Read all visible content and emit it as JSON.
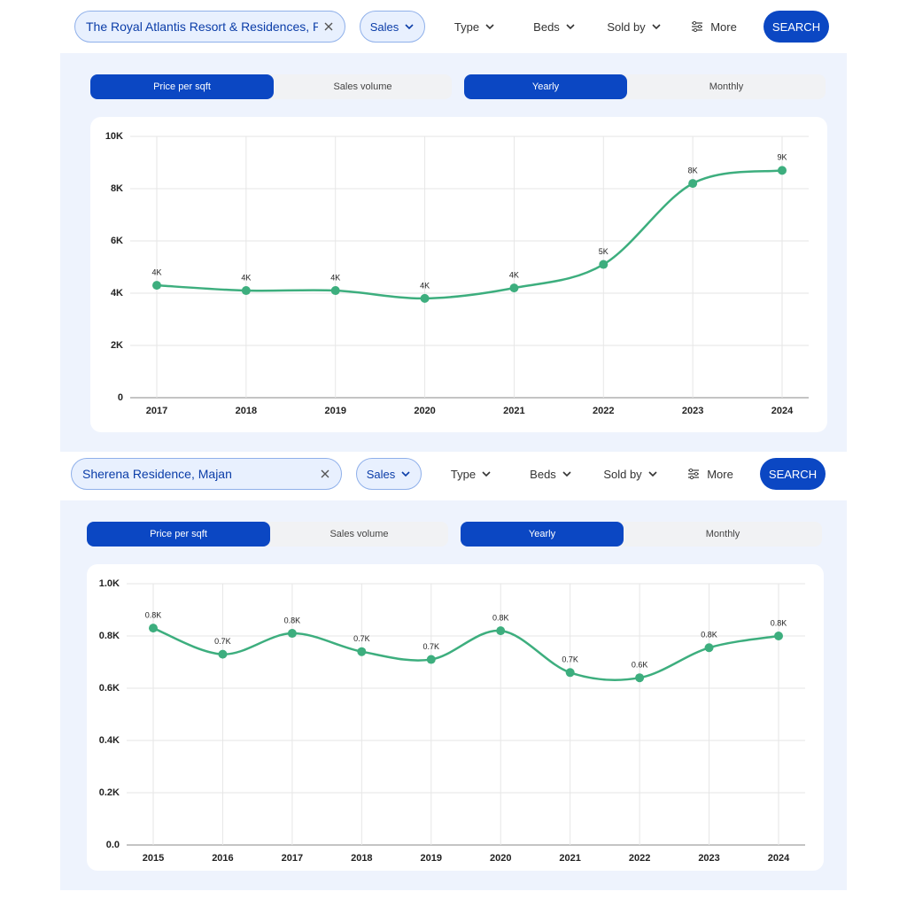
{
  "panels": [
    {
      "search_query": "The Royal Atlantis Resort & Residences, Palm ...",
      "filters": [
        "Sales",
        "Type",
        "Beds",
        "Sold by",
        "More"
      ],
      "search_button": "SEARCH",
      "metric_tabs": [
        "Price per sqft",
        "Sales volume"
      ],
      "period_tabs": [
        "Yearly",
        "Monthly"
      ]
    },
    {
      "search_query": "Sherena Residence, Majan",
      "filters": [
        "Sales",
        "Type",
        "Beds",
        "Sold by",
        "More"
      ],
      "search_button": "SEARCH",
      "metric_tabs": [
        "Price per sqft",
        "Sales volume"
      ],
      "period_tabs": [
        "Yearly",
        "Monthly"
      ]
    }
  ],
  "chart_data": [
    {
      "type": "line",
      "categories": [
        "2017",
        "2018",
        "2019",
        "2020",
        "2021",
        "2022",
        "2023",
        "2024"
      ],
      "values": [
        4300,
        4100,
        4100,
        3800,
        4200,
        5100,
        8200,
        8700
      ],
      "value_labels": [
        "4K",
        "4K",
        "4K",
        "4K",
        "4K",
        "5K",
        "8K",
        "9K"
      ],
      "color": "#3dae7e",
      "ylim": [
        0,
        10000
      ],
      "yticks": [
        0,
        {
          "value": 2000,
          "label": "2K"
        },
        {
          "value": 4000,
          "label": "4K"
        },
        {
          "value": 6000,
          "label": "6K"
        },
        {
          "value": 8000,
          "label": "8K"
        },
        {
          "value": 10000,
          "label": "10K"
        }
      ],
      "grid": true
    },
    {
      "type": "line",
      "categories": [
        "2015",
        "2016",
        "2017",
        "2018",
        "2019",
        "2020",
        "2021",
        "2022",
        "2023",
        "2024"
      ],
      "values": [
        830,
        730,
        810,
        740,
        710,
        820,
        660,
        640,
        755,
        800
      ],
      "value_labels": [
        "0.8K",
        "0.7K",
        "0.8K",
        "0.7K",
        "0.7K",
        "0.8K",
        "0.7K",
        "0.6K",
        "0.8K",
        "0.8K"
      ],
      "color": "#3dae7e",
      "ylim": [
        0,
        1000
      ],
      "yticks": [
        {
          "value": 0,
          "label": "0.0"
        },
        {
          "value": 200,
          "label": "0.2K"
        },
        {
          "value": 400,
          "label": "0.4K"
        },
        {
          "value": 600,
          "label": "0.6K"
        },
        {
          "value": 800,
          "label": "0.8K"
        },
        {
          "value": 1000,
          "label": "1.0K"
        }
      ],
      "grid": true
    }
  ]
}
